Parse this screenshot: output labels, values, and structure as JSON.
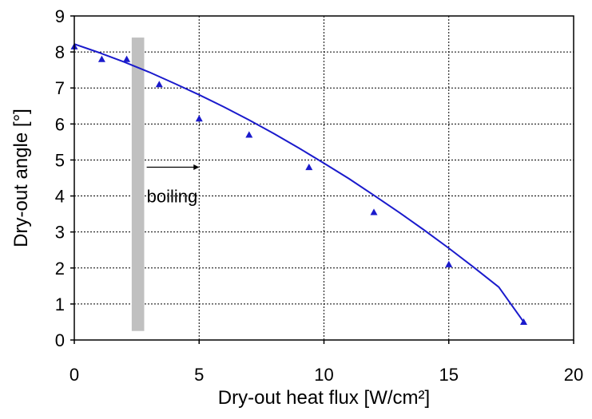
{
  "chart_data": {
    "type": "scatter",
    "title": "",
    "xlabel": "Dry-out heat flux [W/cm²]",
    "ylabel": "Dry-out angle [°]",
    "xlim": [
      0,
      20
    ],
    "ylim": [
      0,
      9
    ],
    "xticks": [
      0,
      5,
      10,
      15,
      20
    ],
    "yticks": [
      0,
      1,
      2,
      3,
      4,
      5,
      6,
      7,
      8,
      9
    ],
    "grid": true,
    "series": [
      {
        "marker": "triangle",
        "color": "#1a1acc",
        "x": [
          0,
          1.1,
          2.1,
          3.4,
          5.0,
          7.0,
          9.4,
          12.0,
          15.0,
          18.0
        ],
        "y": [
          8.15,
          7.8,
          7.8,
          7.1,
          6.15,
          5.7,
          4.8,
          3.55,
          2.1,
          0.5
        ]
      }
    ],
    "fit_curve": {
      "color": "#1a1acc",
      "x": [
        0,
        1,
        2,
        3,
        4,
        5,
        6,
        7,
        8,
        9,
        10,
        11,
        12,
        13,
        14,
        15,
        16,
        17,
        18
      ],
      "y": [
        8.22,
        7.98,
        7.72,
        7.44,
        7.13,
        6.81,
        6.47,
        6.11,
        5.73,
        5.33,
        4.91,
        4.48,
        4.02,
        3.55,
        3.06,
        2.55,
        2.02,
        1.47,
        0.5
      ]
    },
    "boiling_band": {
      "x_range": [
        2.3,
        2.8
      ],
      "y_range": [
        0.25,
        8.4
      ],
      "color": "#c0c0c0"
    },
    "annotation": {
      "text": "boiling",
      "arrow_x": [
        2.9,
        5.0
      ],
      "arrow_y": 4.8,
      "text_x": 2.9,
      "text_y": 4.0
    }
  }
}
